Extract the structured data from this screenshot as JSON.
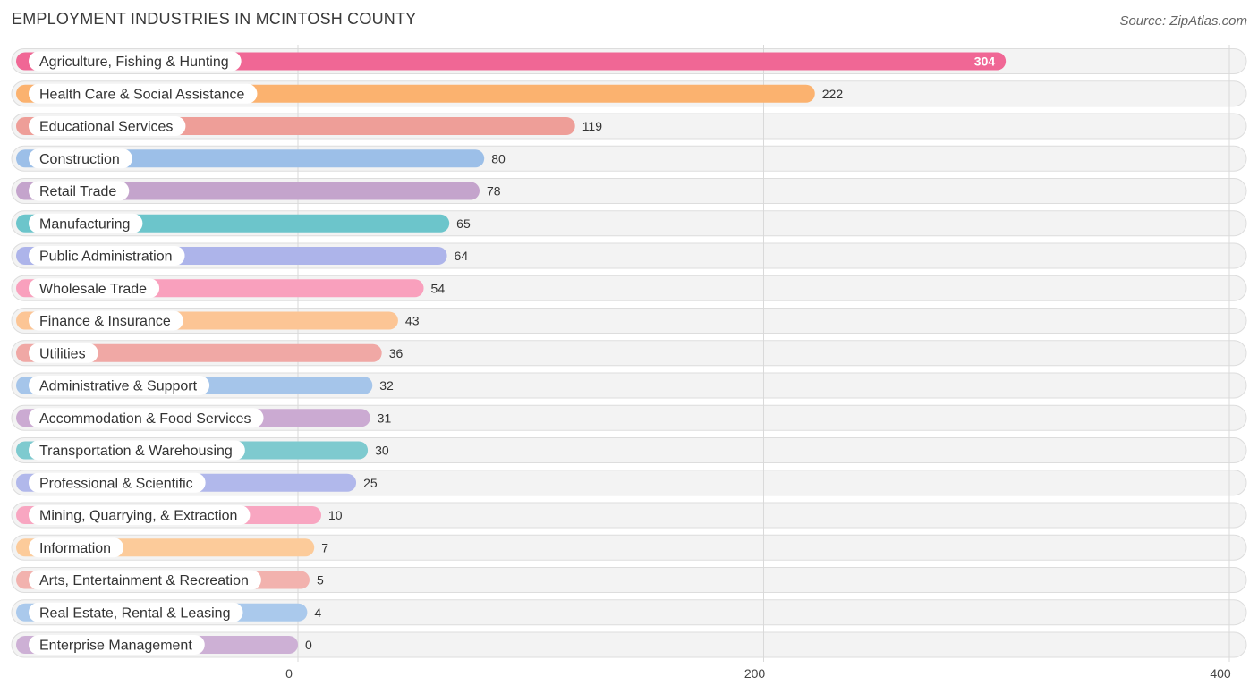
{
  "title": "EMPLOYMENT INDUSTRIES IN MCINTOSH COUNTY",
  "source": "Source: ZipAtlas.com",
  "chart_data": {
    "type": "bar",
    "orientation": "horizontal",
    "title": "EMPLOYMENT INDUSTRIES IN MCINTOSH COUNTY",
    "xlabel": "",
    "ylabel": "",
    "xlim": [
      0,
      400
    ],
    "ticks": [
      0,
      200,
      400
    ],
    "grid": true,
    "categories": [
      "Agriculture, Fishing & Hunting",
      "Health Care & Social Assistance",
      "Educational Services",
      "Construction",
      "Retail Trade",
      "Manufacturing",
      "Public Administration",
      "Wholesale Trade",
      "Finance & Insurance",
      "Utilities",
      "Administrative & Support",
      "Accommodation & Food Services",
      "Transportation & Warehousing",
      "Professional & Scientific",
      "Mining, Quarrying, & Extraction",
      "Information",
      "Arts, Entertainment & Recreation",
      "Real Estate, Rental & Leasing",
      "Enterprise Management"
    ],
    "values": [
      304,
      222,
      119,
      80,
      78,
      65,
      64,
      54,
      43,
      36,
      32,
      31,
      30,
      25,
      10,
      7,
      5,
      4,
      0
    ],
    "colors": [
      "#f06795",
      "#fbb26f",
      "#ee9e98",
      "#9cbfe8",
      "#c4a4cc",
      "#6cc5cb",
      "#adb4ea",
      "#f9a0bd",
      "#fcc595",
      "#f0a8a5",
      "#a5c5ea",
      "#cbaad2",
      "#7ecacf",
      "#b1b8eb",
      "#f8a6c1",
      "#fccb9a",
      "#f2b2ae",
      "#aac9ec",
      "#cdb0d5"
    ]
  }
}
